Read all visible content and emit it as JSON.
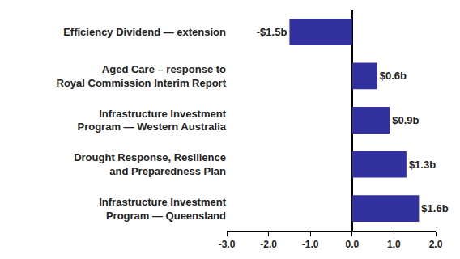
{
  "chart_data": {
    "type": "bar",
    "orientation": "horizontal",
    "categories": [
      "Efficiency Dividend — extension",
      "Aged Care – response to\nRoyal Commission Interim Report",
      "Infrastructure Investment\nProgram — Western Australia",
      "Drought Response, Resilience\nand Preparedness Plan",
      "Infrastructure Investment\nProgram — Queensland"
    ],
    "values": [
      -1.5,
      0.6,
      0.9,
      1.3,
      1.6
    ],
    "value_labels": [
      "-$1.5b",
      "$0.6b",
      "$0.9b",
      "$1.3b",
      "$1.6b"
    ],
    "data_labels": true,
    "color": "#3330a0",
    "xlim": [
      -3,
      2
    ],
    "xticks": [
      {
        "value": -3,
        "label": "-3.0"
      },
      {
        "value": -2,
        "label": "-2.0"
      },
      {
        "value": -1,
        "label": "-1.0"
      },
      {
        "value": 0,
        "label": "0.0"
      },
      {
        "value": 1,
        "label": "1.0"
      },
      {
        "value": 2,
        "label": "2.0"
      }
    ],
    "grid": false
  }
}
